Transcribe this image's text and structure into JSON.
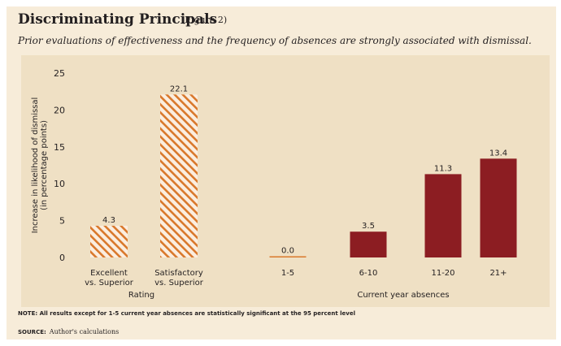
{
  "header": {
    "title": "Discriminating Principals",
    "figure_label": "(Figure 2)",
    "subtitle": "Prior evaluations of effectiveness and the frequency of absences are strongly associated with dismissal."
  },
  "footer": {
    "note": "NOTE: All results except for 1-5 current year absences are statistically significant at the 95 percent level",
    "source_label": "SOURCE:",
    "source_text": "Author's calculations"
  },
  "colors": {
    "orange": "#d9782b",
    "hatch": "#fbeee0",
    "maroon": "#8c1d22",
    "chart_bg": "#efe0c4",
    "panel_bg": "#f7ecd9"
  },
  "chart_data": {
    "type": "bar",
    "ylabel": "Increase in likelihood of dismissal (in percentage points)",
    "ylabel_lines": [
      "Increase in likelihood of dismissal",
      "(in percentage points)"
    ],
    "ylim": [
      0,
      25
    ],
    "yticks": [
      0,
      5,
      10,
      15,
      20,
      25
    ],
    "grid": false,
    "groups": [
      {
        "name": "Rating",
        "style": "hatched-orange",
        "categories": [
          [
            "Excellent",
            "vs. Superior"
          ],
          [
            "Satisfactory",
            "vs. Superior"
          ]
        ],
        "values": [
          4.3,
          22.1
        ],
        "labels": [
          "4.3",
          "22.1"
        ]
      },
      {
        "name": "Current year absences",
        "style": "solid-maroon",
        "categories": [
          [
            "1-5"
          ],
          [
            "6-10"
          ],
          [
            "11-20"
          ],
          [
            "21+"
          ]
        ],
        "values": [
          0.0,
          3.5,
          11.3,
          13.4
        ],
        "labels": [
          "0.0",
          "3.5",
          "11.3",
          "13.4"
        ]
      }
    ]
  }
}
